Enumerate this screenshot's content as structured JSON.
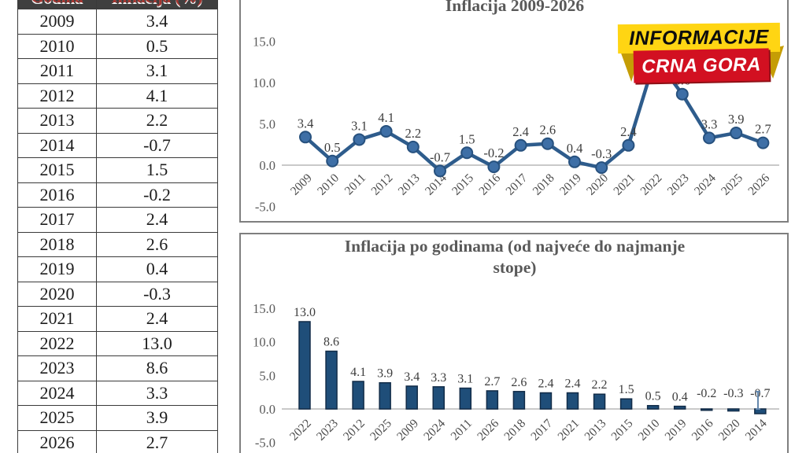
{
  "table": {
    "headers": [
      "Godina",
      "Inflacija (%)"
    ],
    "rows": [
      [
        "2009",
        "3.4"
      ],
      [
        "2010",
        "0.5"
      ],
      [
        "2011",
        "3.1"
      ],
      [
        "2012",
        "4.1"
      ],
      [
        "2013",
        "2.2"
      ],
      [
        "2014",
        "-0.7"
      ],
      [
        "2015",
        "1.5"
      ],
      [
        "2016",
        "-0.2"
      ],
      [
        "2017",
        "2.4"
      ],
      [
        "2018",
        "2.6"
      ],
      [
        "2019",
        "0.4"
      ],
      [
        "2020",
        "-0.3"
      ],
      [
        "2021",
        "2.4"
      ],
      [
        "2022",
        "13.0"
      ],
      [
        "2023",
        "8.6"
      ],
      [
        "2024",
        "3.3"
      ],
      [
        "2025",
        "3.9"
      ],
      [
        "2026",
        "2.7"
      ]
    ]
  },
  "badge": {
    "line1": "INFORMACIJE",
    "line2": "CRNA GORA",
    "yellow": "#FFD513",
    "yellow_dark": "#C59D05",
    "red": "#D21021",
    "red_dark": "#8E1016"
  },
  "chart_data": [
    {
      "type": "line",
      "title": "Inflacija 2009-2026",
      "categories": [
        "2009",
        "2010",
        "2011",
        "2012",
        "2013",
        "2014",
        "2015",
        "2016",
        "2017",
        "2018",
        "2019",
        "2020",
        "2021",
        "2022",
        "2023",
        "2024",
        "2025",
        "2026"
      ],
      "values": [
        3.4,
        0.5,
        3.1,
        4.1,
        2.2,
        -0.7,
        1.5,
        -0.2,
        2.4,
        2.6,
        0.4,
        -0.3,
        2.4,
        13.0,
        8.6,
        3.3,
        3.9,
        2.7
      ],
      "labels": [
        "3.4",
        "0.5",
        "3.1",
        "4.1",
        "2.2",
        "-0.7",
        "1.5",
        "-0.2",
        "2.4",
        "2.6",
        "0.4",
        "-0.3",
        "2.4",
        "13.0",
        "8.6",
        "3.3",
        "3.9",
        "2.7"
      ],
      "xlabel": "",
      "ylabel": "",
      "ylim": [
        -5,
        15
      ],
      "yticks": [
        "15.0",
        "10.0",
        "5.0",
        "0.0",
        "-5.0"
      ],
      "ytick_values": [
        15,
        10,
        5,
        0,
        -5
      ],
      "grid": "zero-line-only",
      "legend": "none",
      "line_color": "#2E5C8C",
      "marker_fill": "#3E6FA6",
      "marker_stroke": "#27517E"
    },
    {
      "type": "bar",
      "title": "Inflacija po godinama (od najveće do najmanje stope)",
      "title_lines": [
        "Inflacija po godinama (od najveće do najmanje",
        "stope)"
      ],
      "categories": [
        "2022",
        "2023",
        "2012",
        "2025",
        "2009",
        "2024",
        "2011",
        "2026",
        "2018",
        "2017",
        "2021",
        "2013",
        "2015",
        "2010",
        "2019",
        "2016",
        "2020",
        "2014"
      ],
      "values": [
        13.0,
        8.6,
        4.1,
        3.9,
        3.4,
        3.3,
        3.1,
        2.7,
        2.6,
        2.4,
        2.4,
        2.2,
        1.5,
        0.5,
        0.4,
        -0.2,
        -0.3,
        -0.7
      ],
      "labels": [
        "13.0",
        "8.6",
        "4.1",
        "3.9",
        "3.4",
        "3.3",
        "3.1",
        "2.7",
        "2.6",
        "2.4",
        "2.4",
        "2.2",
        "1.5",
        "0.5",
        "0.4",
        "-0.2",
        "-0.3",
        "-0.7"
      ],
      "xlabel": "",
      "ylabel": "",
      "ylim": [
        -5,
        15
      ],
      "yticks": [
        "15.0",
        "10.0",
        "5.0",
        "0.0",
        "-5.0"
      ],
      "ytick_values": [
        15,
        10,
        5,
        0,
        -5
      ],
      "grid": "zero-line-only",
      "legend": "none",
      "bar_color": "#1F4E79",
      "bar_stroke": "#122C48"
    }
  ]
}
